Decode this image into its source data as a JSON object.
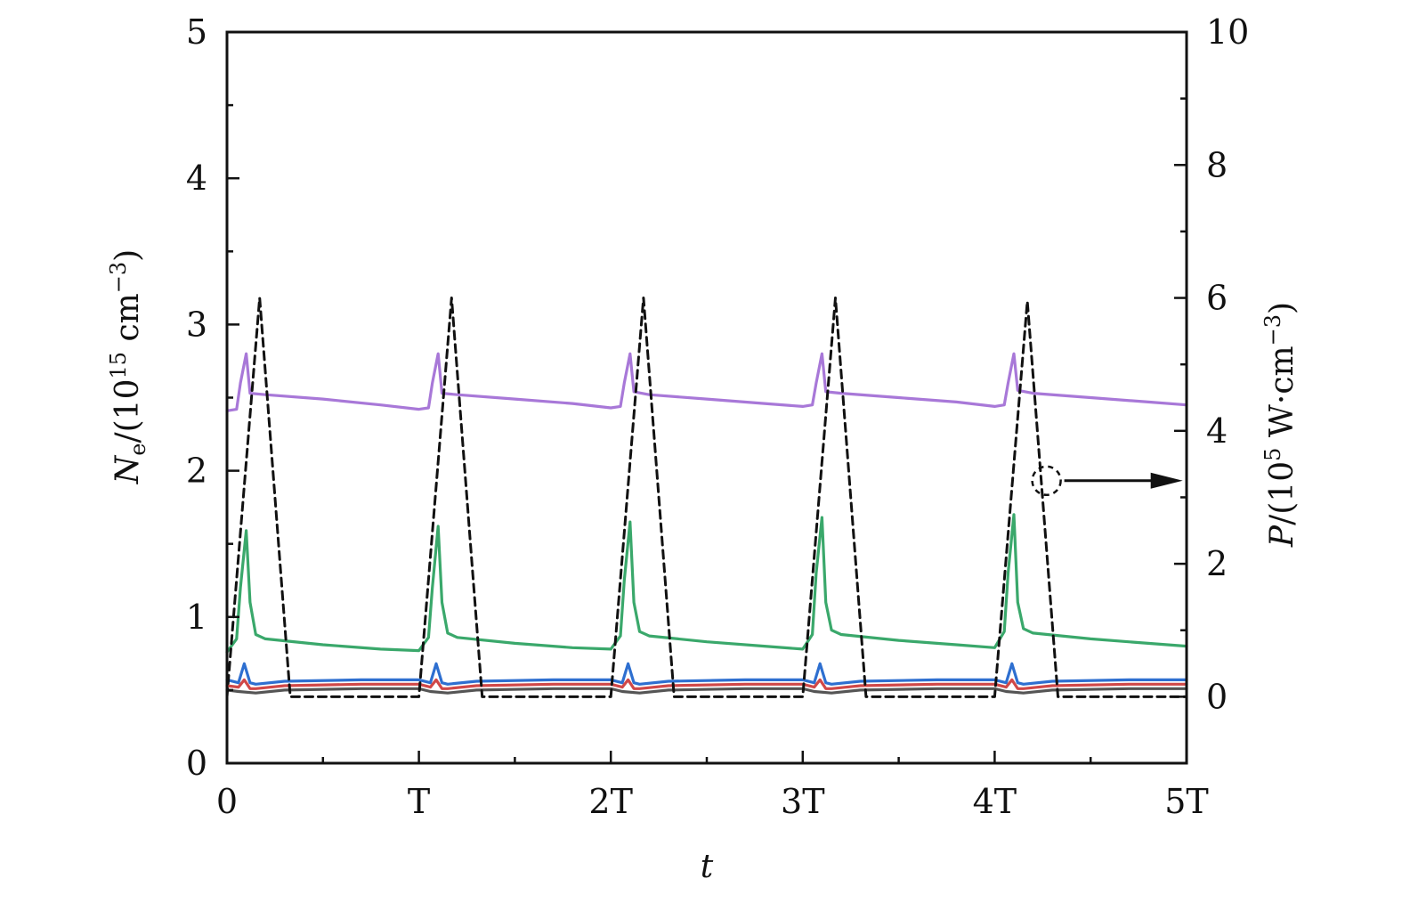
{
  "chart_data": {
    "type": "line",
    "x_range": [
      0,
      5
    ],
    "xlabel": "t",
    "x_ticks": [
      {
        "value": 0,
        "label": "0"
      },
      {
        "value": 1,
        "label": "T"
      },
      {
        "value": 2,
        "label": "2T"
      },
      {
        "value": 3,
        "label": "3T"
      },
      {
        "value": 4,
        "label": "4T"
      },
      {
        "value": 5,
        "label": "5T"
      }
    ],
    "y_left": {
      "label_main": "N",
      "label_sub": "e",
      "label_rest": "/(10",
      "label_sup": "15",
      "label_end": " cm",
      "label_sup2": "−3",
      "label_close": ")",
      "range": [
        0,
        5
      ],
      "ticks": [
        "0",
        "1",
        "2",
        "3",
        "4",
        "5"
      ]
    },
    "y_right": {
      "label_main": "P",
      "label_rest": "/(10",
      "label_sup": "5",
      "label_end": " W·cm",
      "label_sup2": "−3",
      "label_close": ")",
      "range": [
        -1,
        10
      ],
      "ticks": [
        "0",
        "2",
        "4",
        "6",
        "8",
        "10"
      ]
    },
    "grid": false,
    "series": [
      {
        "axis": "left",
        "color": "#a878d8",
        "style": "solid",
        "x": [
          0,
          0.05,
          0.07,
          0.1,
          0.12,
          0.2,
          0.5,
          0.8,
          1.0,
          1.05,
          1.07,
          1.1,
          1.12,
          1.2,
          1.5,
          1.8,
          2.0,
          2.05,
          2.07,
          2.1,
          2.12,
          2.2,
          2.5,
          2.8,
          3.0,
          3.05,
          3.07,
          3.1,
          3.12,
          3.2,
          3.5,
          3.8,
          4.0,
          4.05,
          4.07,
          4.1,
          4.12,
          4.2,
          4.5,
          4.8,
          5.0
        ],
        "values": [
          2.41,
          2.42,
          2.6,
          2.8,
          2.53,
          2.52,
          2.49,
          2.45,
          2.42,
          2.43,
          2.6,
          2.8,
          2.53,
          2.52,
          2.49,
          2.46,
          2.43,
          2.44,
          2.6,
          2.8,
          2.54,
          2.52,
          2.49,
          2.46,
          2.44,
          2.45,
          2.6,
          2.8,
          2.54,
          2.53,
          2.5,
          2.47,
          2.44,
          2.45,
          2.6,
          2.8,
          2.55,
          2.53,
          2.5,
          2.47,
          2.45
        ]
      },
      {
        "axis": "left",
        "color": "#3aa86b",
        "style": "solid",
        "x": [
          0,
          0.05,
          0.07,
          0.1,
          0.12,
          0.15,
          0.2,
          0.5,
          0.8,
          1.0,
          1.05,
          1.07,
          1.1,
          1.12,
          1.15,
          1.2,
          1.5,
          1.8,
          2.0,
          2.05,
          2.07,
          2.1,
          2.12,
          2.15,
          2.2,
          2.5,
          2.8,
          3.0,
          3.05,
          3.07,
          3.1,
          3.12,
          3.15,
          3.2,
          3.5,
          3.8,
          4.0,
          4.05,
          4.07,
          4.1,
          4.12,
          4.15,
          4.2,
          4.5,
          4.8,
          5.0
        ],
        "values": [
          0.76,
          0.85,
          1.2,
          1.59,
          1.1,
          0.88,
          0.85,
          0.81,
          0.78,
          0.77,
          0.86,
          1.2,
          1.62,
          1.1,
          0.89,
          0.86,
          0.82,
          0.79,
          0.78,
          0.87,
          1.25,
          1.65,
          1.1,
          0.9,
          0.87,
          0.83,
          0.8,
          0.78,
          0.88,
          1.3,
          1.68,
          1.1,
          0.91,
          0.88,
          0.84,
          0.81,
          0.79,
          0.9,
          1.3,
          1.7,
          1.1,
          0.92,
          0.89,
          0.85,
          0.82,
          0.8
        ]
      },
      {
        "axis": "left",
        "color": "#2e6fd0",
        "style": "solid",
        "x": [
          0,
          0.06,
          0.09,
          0.12,
          0.15,
          0.3,
          0.7,
          1.0,
          1.06,
          1.09,
          1.12,
          1.15,
          1.3,
          1.7,
          2.0,
          2.06,
          2.09,
          2.12,
          2.15,
          2.3,
          2.7,
          3.0,
          3.06,
          3.09,
          3.12,
          3.15,
          3.3,
          3.7,
          4.0,
          4.06,
          4.09,
          4.12,
          4.15,
          4.3,
          4.7,
          5.0
        ],
        "values": [
          0.57,
          0.55,
          0.68,
          0.55,
          0.54,
          0.56,
          0.57,
          0.57,
          0.55,
          0.68,
          0.55,
          0.54,
          0.56,
          0.57,
          0.57,
          0.55,
          0.68,
          0.55,
          0.54,
          0.56,
          0.57,
          0.57,
          0.55,
          0.68,
          0.55,
          0.54,
          0.56,
          0.57,
          0.57,
          0.55,
          0.68,
          0.55,
          0.54,
          0.56,
          0.57,
          0.57
        ]
      },
      {
        "axis": "left",
        "color": "#d04848",
        "style": "solid",
        "x": [
          0,
          0.06,
          0.09,
          0.12,
          0.15,
          0.3,
          0.7,
          1.0,
          1.06,
          1.09,
          1.12,
          1.15,
          1.3,
          1.7,
          2.0,
          2.06,
          2.09,
          2.12,
          2.15,
          2.3,
          2.7,
          3.0,
          3.06,
          3.09,
          3.12,
          3.15,
          3.3,
          3.7,
          4.0,
          4.06,
          4.09,
          4.12,
          4.15,
          4.3,
          4.7,
          5.0
        ],
        "values": [
          0.53,
          0.52,
          0.57,
          0.51,
          0.51,
          0.53,
          0.54,
          0.54,
          0.52,
          0.57,
          0.51,
          0.51,
          0.53,
          0.54,
          0.54,
          0.52,
          0.57,
          0.51,
          0.51,
          0.53,
          0.54,
          0.54,
          0.52,
          0.57,
          0.51,
          0.51,
          0.53,
          0.54,
          0.54,
          0.52,
          0.57,
          0.51,
          0.51,
          0.53,
          0.54,
          0.54
        ]
      },
      {
        "axis": "left",
        "color": "#555555",
        "style": "solid",
        "x": [
          0,
          0.06,
          0.15,
          0.3,
          0.7,
          1.0,
          1.06,
          1.15,
          1.3,
          1.7,
          2.0,
          2.06,
          2.15,
          2.3,
          2.7,
          3.0,
          3.06,
          3.15,
          3.3,
          3.7,
          4.0,
          4.06,
          4.15,
          4.3,
          4.7,
          5.0
        ],
        "values": [
          0.5,
          0.49,
          0.48,
          0.5,
          0.51,
          0.51,
          0.49,
          0.48,
          0.5,
          0.51,
          0.51,
          0.49,
          0.48,
          0.5,
          0.51,
          0.51,
          0.49,
          0.48,
          0.5,
          0.51,
          0.51,
          0.49,
          0.48,
          0.5,
          0.51,
          0.51
        ]
      },
      {
        "axis": "right",
        "color": "#111111",
        "style": "dashed",
        "x": [
          0,
          0.17,
          0.33,
          1.0,
          1.17,
          1.33,
          2.0,
          2.17,
          2.33,
          3.0,
          3.17,
          3.33,
          4.0,
          4.17,
          4.33,
          5.0
        ],
        "values": [
          0,
          6.0,
          0,
          0,
          6.0,
          0,
          0,
          6.0,
          0,
          0,
          6.0,
          0,
          0,
          5.95,
          0,
          0
        ]
      }
    ],
    "annotation": {
      "type": "arrow-to-right-axis",
      "circle_at": {
        "x": 4.27,
        "y_right": 3.25
      },
      "arrow_end": {
        "x": 4.98,
        "y_right": 3.25
      }
    }
  }
}
